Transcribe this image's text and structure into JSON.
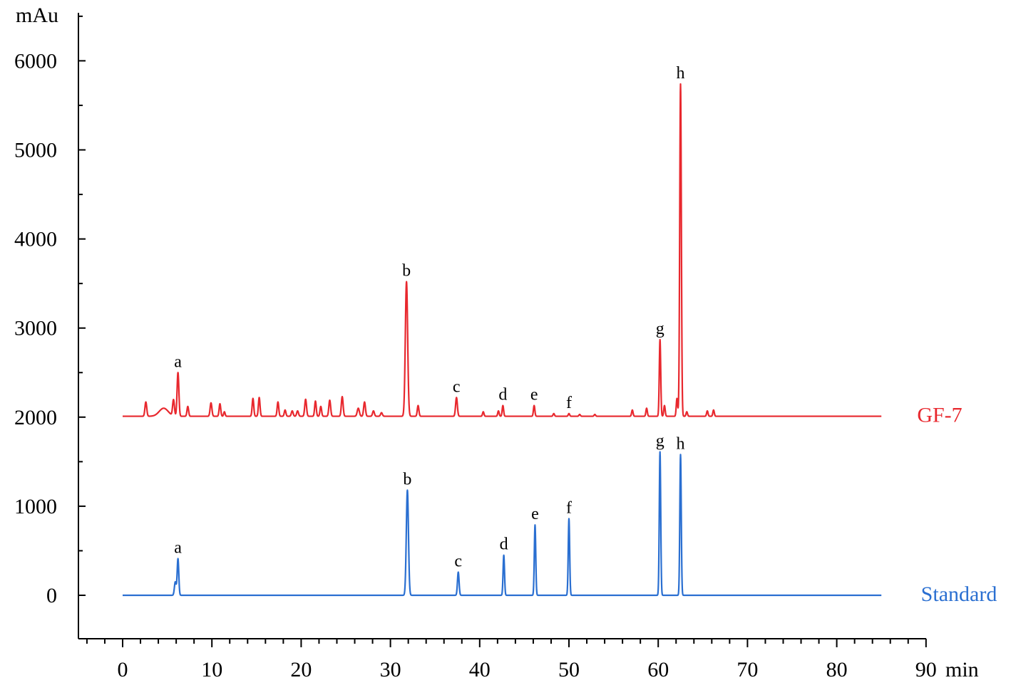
{
  "chart_data": {
    "type": "line",
    "title": "",
    "xlabel": "min",
    "ylabel": "mAu",
    "xlim": [
      -5,
      90
    ],
    "ylim": [
      -500,
      6500
    ],
    "x_ticks": [
      0,
      10,
      20,
      30,
      40,
      50,
      60,
      70,
      80,
      90
    ],
    "x_tick_labels": [
      "0",
      "10",
      "20",
      "30",
      "40",
      "50",
      "60",
      "70",
      "80",
      "90"
    ],
    "y_ticks": [
      0,
      1000,
      2000,
      3000,
      4000,
      5000,
      6000
    ],
    "y_tick_labels": [
      "0",
      "1000",
      "2000",
      "3000",
      "4000",
      "5000",
      "6000"
    ],
    "grid": false,
    "legend": "right of traces",
    "series": [
      {
        "name": "GF-7",
        "color": "#e8282e",
        "baseline": 2010,
        "x_range": [
          0,
          85
        ],
        "peaks": [
          {
            "x": 2.6,
            "y": 2170,
            "w": 0.1
          },
          {
            "x": 4.6,
            "y": 2100,
            "w": 0.5
          },
          {
            "x": 5.7,
            "y": 2190,
            "w": 0.1
          },
          {
            "x": 6.2,
            "y": 2500,
            "w": 0.1,
            "label": "a"
          },
          {
            "x": 7.3,
            "y": 2120,
            "w": 0.09
          },
          {
            "x": 9.9,
            "y": 2160,
            "w": 0.1
          },
          {
            "x": 10.9,
            "y": 2150,
            "w": 0.09
          },
          {
            "x": 11.4,
            "y": 2060,
            "w": 0.08
          },
          {
            "x": 14.6,
            "y": 2210,
            "w": 0.09
          },
          {
            "x": 15.3,
            "y": 2220,
            "w": 0.09
          },
          {
            "x": 17.4,
            "y": 2170,
            "w": 0.09
          },
          {
            "x": 18.2,
            "y": 2080,
            "w": 0.09
          },
          {
            "x": 19.0,
            "y": 2070,
            "w": 0.1
          },
          {
            "x": 19.6,
            "y": 2070,
            "w": 0.1
          },
          {
            "x": 20.5,
            "y": 2200,
            "w": 0.1
          },
          {
            "x": 21.6,
            "y": 2180,
            "w": 0.09
          },
          {
            "x": 22.2,
            "y": 2120,
            "w": 0.09
          },
          {
            "x": 23.2,
            "y": 2190,
            "w": 0.1
          },
          {
            "x": 24.6,
            "y": 2230,
            "w": 0.1
          },
          {
            "x": 26.4,
            "y": 2100,
            "w": 0.12
          },
          {
            "x": 27.1,
            "y": 2170,
            "w": 0.1
          },
          {
            "x": 28.1,
            "y": 2070,
            "w": 0.1
          },
          {
            "x": 29.0,
            "y": 2050,
            "w": 0.1
          },
          {
            "x": 31.8,
            "y": 3520,
            "w": 0.13,
            "label": "b"
          },
          {
            "x": 33.1,
            "y": 2130,
            "w": 0.09
          },
          {
            "x": 37.4,
            "y": 2220,
            "w": 0.1,
            "label": "c"
          },
          {
            "x": 40.4,
            "y": 2060,
            "w": 0.08
          },
          {
            "x": 42.1,
            "y": 2070,
            "w": 0.08
          },
          {
            "x": 42.6,
            "y": 2130,
            "w": 0.08,
            "label": "d"
          },
          {
            "x": 46.1,
            "y": 2130,
            "w": 0.08,
            "label": "e"
          },
          {
            "x": 48.3,
            "y": 2040,
            "w": 0.08
          },
          {
            "x": 50.0,
            "y": 2040,
            "w": 0.08,
            "label": "f"
          },
          {
            "x": 51.2,
            "y": 2030,
            "w": 0.08
          },
          {
            "x": 52.9,
            "y": 2030,
            "w": 0.08
          },
          {
            "x": 57.1,
            "y": 2080,
            "w": 0.08
          },
          {
            "x": 58.7,
            "y": 2100,
            "w": 0.08
          },
          {
            "x": 60.2,
            "y": 2870,
            "w": 0.08,
            "label": "g"
          },
          {
            "x": 60.7,
            "y": 2130,
            "w": 0.08
          },
          {
            "x": 62.1,
            "y": 2210,
            "w": 0.08
          },
          {
            "x": 62.5,
            "y": 5740,
            "w": 0.09,
            "label": "h"
          },
          {
            "x": 63.2,
            "y": 2060,
            "w": 0.08
          },
          {
            "x": 65.5,
            "y": 2070,
            "w": 0.08
          },
          {
            "x": 66.2,
            "y": 2080,
            "w": 0.08
          }
        ]
      },
      {
        "name": "Standard",
        "color": "#2a6fd1",
        "baseline": 0,
        "x_range": [
          0,
          85
        ],
        "peaks": [
          {
            "x": 5.9,
            "y": 150,
            "w": 0.1
          },
          {
            "x": 6.2,
            "y": 410,
            "w": 0.09,
            "label": "a"
          },
          {
            "x": 31.9,
            "y": 1180,
            "w": 0.12,
            "label": "b"
          },
          {
            "x": 37.6,
            "y": 260,
            "w": 0.09,
            "label": "c"
          },
          {
            "x": 42.7,
            "y": 450,
            "w": 0.08,
            "label": "d"
          },
          {
            "x": 46.2,
            "y": 790,
            "w": 0.08,
            "label": "e"
          },
          {
            "x": 50.0,
            "y": 860,
            "w": 0.08,
            "label": "f"
          },
          {
            "x": 60.2,
            "y": 1610,
            "w": 0.08,
            "label": "g"
          },
          {
            "x": 62.5,
            "y": 1580,
            "w": 0.08,
            "label": "h"
          }
        ]
      }
    ]
  }
}
